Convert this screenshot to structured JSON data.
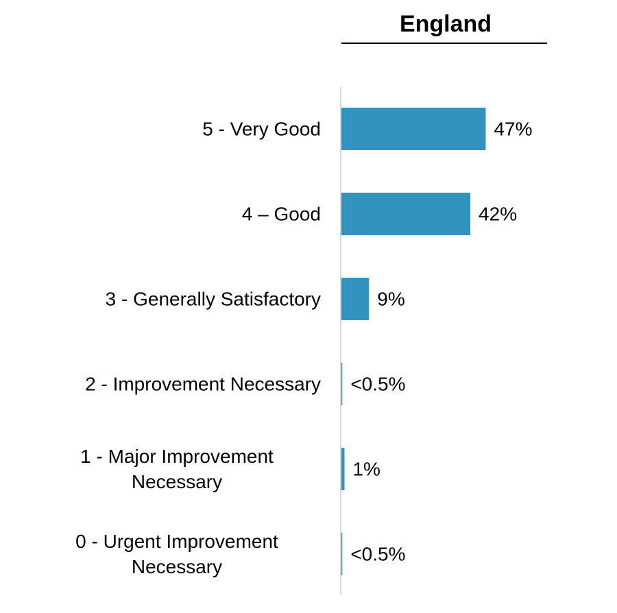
{
  "chart_data": {
    "type": "bar",
    "orientation": "horizontal",
    "title": "England",
    "categories": [
      "5 - Very Good",
      "4 – Good",
      "3 - Generally Satisfactory",
      "2 - Improvement Necessary",
      "1 - Major Improvement Necessary",
      "0 - Urgent Improvement Necessary"
    ],
    "values": [
      47,
      42,
      9,
      0.3,
      1,
      0.3
    ],
    "value_labels": [
      "47%",
      "42%",
      "9%",
      "<0.5%",
      "1%",
      "<0.5%"
    ],
    "color": "#3393bf",
    "xlim": [
      0,
      67
    ]
  }
}
